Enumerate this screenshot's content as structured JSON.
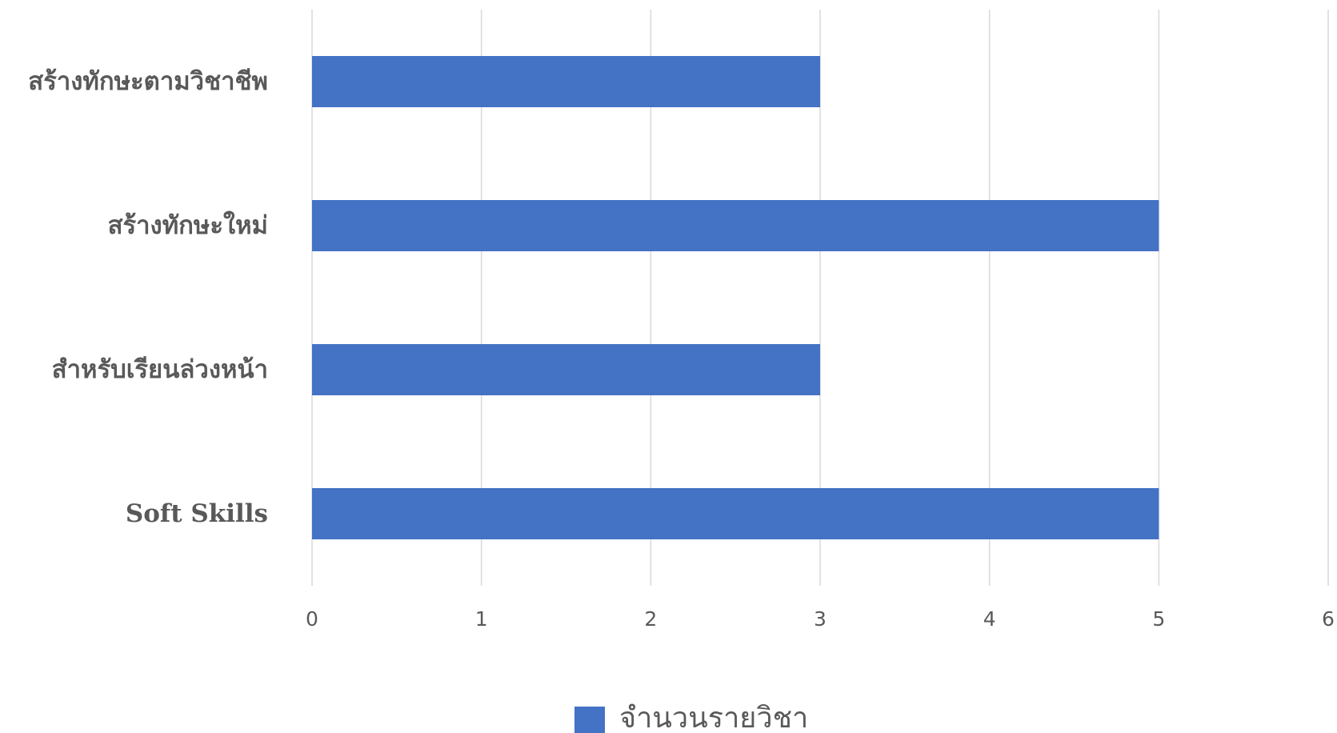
{
  "chart_data": {
    "type": "bar",
    "orientation": "horizontal",
    "categories": [
      "Soft Skills",
      "สำหรับเรียนล่วงหน้า",
      "สร้างทักษะใหม่",
      "สร้างทักษะตามวิชาชีพ"
    ],
    "series": [
      {
        "name": "จำนวนรายวิชา",
        "values": [
          5,
          3,
          5,
          3
        ],
        "color": "#4472C4"
      }
    ],
    "xlim": [
      0,
      6
    ],
    "x_ticks": [
      "0",
      "1",
      "2",
      "3",
      "4",
      "5",
      "6"
    ],
    "grid": "vertical",
    "legend": "bottom"
  }
}
